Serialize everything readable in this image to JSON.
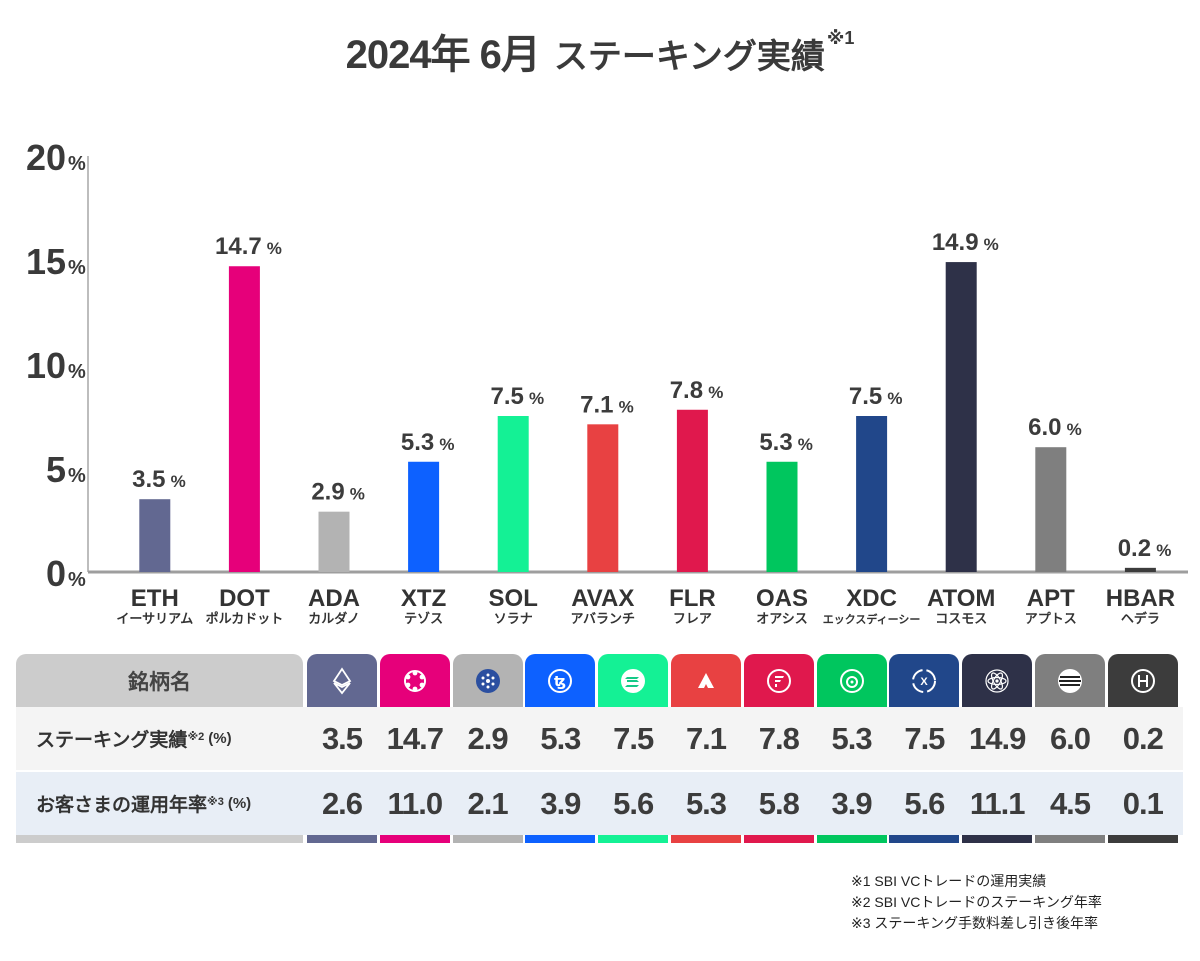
{
  "title": {
    "main": "2024年 6月",
    "sub": "ステーキング実績",
    "note_mark": "※1"
  },
  "chart_data": {
    "type": "bar",
    "title": "2024年 6月 ステーキング実績※1",
    "categories": [
      "ETH",
      "DOT",
      "ADA",
      "XTZ",
      "SOL",
      "AVAX",
      "FLR",
      "OAS",
      "XDC",
      "ATOM",
      "APT",
      "HBAR"
    ],
    "category_subs": [
      "イーサリアム",
      "ポルカドット",
      "カルダノ",
      "テゾス",
      "ソラナ",
      "アバランチ",
      "フレア",
      "オアシス",
      "エックスディーシー",
      "コスモス",
      "アプトス",
      "ヘデラ"
    ],
    "values": [
      3.5,
      14.7,
      2.9,
      5.3,
      7.5,
      7.1,
      7.8,
      5.3,
      7.5,
      14.9,
      6.0,
      0.2
    ],
    "value_labels": [
      "3.5",
      "14.7",
      "2.9",
      "5.3",
      "7.5",
      "7.1",
      "7.8",
      "5.3",
      "7.5",
      "14.9",
      "6.0",
      "0.2"
    ],
    "colors": [
      "#626891",
      "#e6007a",
      "#b3b3b3",
      "#0d61ff",
      "#14f195",
      "#e84142",
      "#e0184d",
      "#00c65e",
      "#21478a",
      "#2e3148",
      "#7f7f7f",
      "#3c3c3c"
    ],
    "ylim": [
      0,
      20
    ],
    "yticks": [
      0,
      5,
      10,
      15,
      20
    ],
    "ytick_unit": "%",
    "value_unit": "%",
    "grid": false
  },
  "table": {
    "header_label": "銘柄名",
    "icons": [
      "ethereum-icon",
      "polkadot-icon",
      "cardano-icon",
      "tezos-icon",
      "solana-icon",
      "avalanche-icon",
      "flare-icon",
      "oasys-icon",
      "xdc-icon",
      "cosmos-icon",
      "aptos-icon",
      "hedera-icon"
    ],
    "row1_label": "ステーキング実績",
    "row1_note": "※2",
    "row1_unit": "(%)",
    "row1_values": [
      "3.5",
      "14.7",
      "2.9",
      "5.3",
      "7.5",
      "7.1",
      "7.8",
      "5.3",
      "7.5",
      "14.9",
      "6.0",
      "0.2"
    ],
    "row2_label": "お客さまの運用年率",
    "row2_note": "※3",
    "row2_unit": "(%)",
    "row2_values": [
      "2.6",
      "11.0",
      "2.1",
      "3.9",
      "5.6",
      "5.3",
      "5.8",
      "3.9",
      "5.6",
      "11.1",
      "4.5",
      "0.1"
    ]
  },
  "notes": [
    "※1  SBI VCトレードの運用実績",
    "※2  SBI VCトレードのステーキング年率",
    "※3  ステーキング手数料差し引き後年率"
  ]
}
